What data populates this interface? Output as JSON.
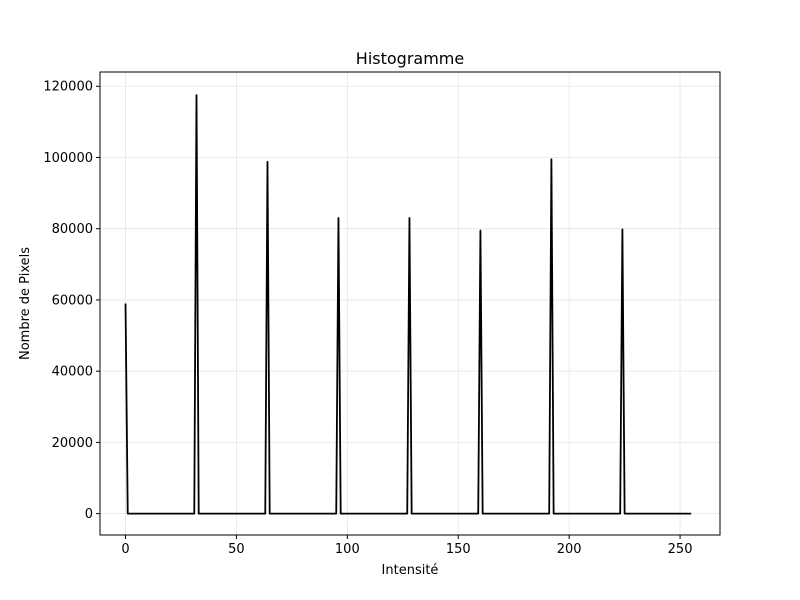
{
  "chart_data": {
    "type": "line",
    "title": "Histogramme",
    "xlabel": "Intensité",
    "ylabel": "Nombre de Pixels",
    "xlim": [
      -11.5,
      268
    ],
    "ylim": [
      -6000,
      124000
    ],
    "xticks": [
      0,
      50,
      100,
      150,
      200,
      250
    ],
    "yticks": [
      0,
      20000,
      40000,
      60000,
      80000,
      100000,
      120000
    ],
    "grid": true,
    "line_color": "#000000",
    "series": [
      {
        "x": [
          0,
          1,
          31,
          32,
          33,
          63,
          64,
          65,
          95,
          96,
          97,
          127,
          128,
          129,
          159,
          160,
          161,
          191,
          192,
          193,
          223,
          224,
          225,
          255
        ],
        "y": [
          59000,
          0,
          0,
          117500,
          0,
          0,
          98800,
          0,
          0,
          83000,
          0,
          0,
          83000,
          0,
          0,
          79500,
          0,
          0,
          99500,
          0,
          0,
          79800,
          0,
          0
        ]
      }
    ]
  }
}
